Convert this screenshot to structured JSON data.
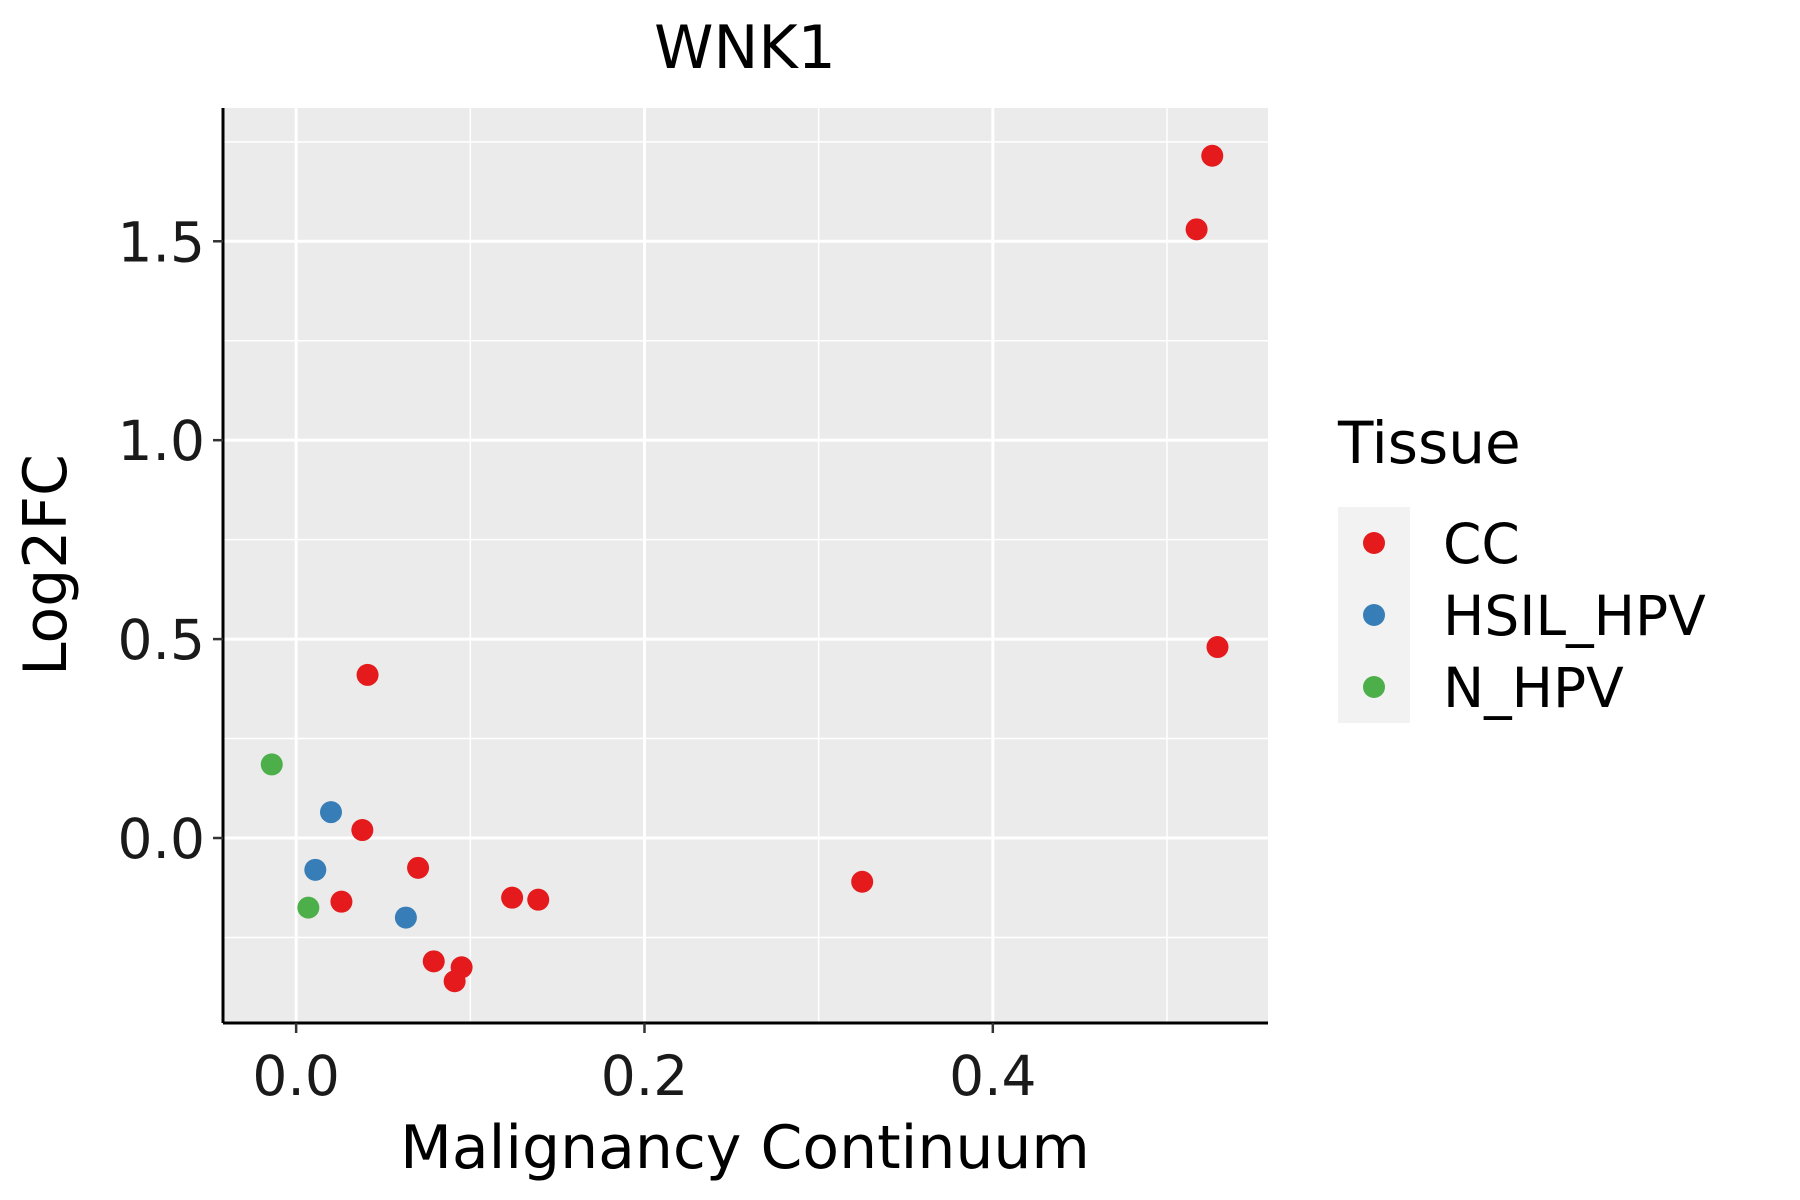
{
  "chart_data": {
    "type": "scatter",
    "title": "WNK1",
    "xlabel": "Malignancy Continuum",
    "ylabel": "Log2FC",
    "xlim": [
      -0.042,
      0.558
    ],
    "ylim": [
      -0.465,
      1.835
    ],
    "x_ticks": [
      {
        "value": 0.0,
        "label": "0.0"
      },
      {
        "value": 0.2,
        "label": "0.2"
      },
      {
        "value": 0.4,
        "label": "0.4"
      }
    ],
    "y_ticks": [
      {
        "value": 0.0,
        "label": "0.0"
      },
      {
        "value": 0.5,
        "label": "0.5"
      },
      {
        "value": 1.0,
        "label": "1.0"
      },
      {
        "value": 1.5,
        "label": "1.5"
      }
    ],
    "grid": true,
    "legend": {
      "title": "Tissue",
      "position": "right",
      "entries": [
        {
          "name": "CC",
          "color": "#E41A1C"
        },
        {
          "name": "HSIL_HPV",
          "color": "#377EB8"
        },
        {
          "name": "N_HPV",
          "color": "#4DAF4A"
        }
      ]
    },
    "series": [
      {
        "name": "CC",
        "color": "#E41A1C",
        "points": [
          {
            "x": 0.526,
            "y": 1.715
          },
          {
            "x": 0.517,
            "y": 1.53
          },
          {
            "x": 0.529,
            "y": 0.48
          },
          {
            "x": 0.041,
            "y": 0.41
          },
          {
            "x": 0.038,
            "y": 0.02
          },
          {
            "x": 0.07,
            "y": -0.075
          },
          {
            "x": 0.325,
            "y": -0.11
          },
          {
            "x": 0.124,
            "y": -0.15
          },
          {
            "x": 0.139,
            "y": -0.155
          },
          {
            "x": 0.026,
            "y": -0.16
          },
          {
            "x": 0.079,
            "y": -0.31
          },
          {
            "x": 0.095,
            "y": -0.325
          },
          {
            "x": 0.091,
            "y": -0.36
          }
        ]
      },
      {
        "name": "HSIL_HPV",
        "color": "#377EB8",
        "points": [
          {
            "x": 0.02,
            "y": 0.065
          },
          {
            "x": 0.011,
            "y": -0.08
          },
          {
            "x": 0.063,
            "y": -0.2
          }
        ]
      },
      {
        "name": "N_HPV",
        "color": "#4DAF4A",
        "points": [
          {
            "x": -0.014,
            "y": 0.185
          },
          {
            "x": 0.007,
            "y": -0.175
          }
        ]
      }
    ]
  }
}
